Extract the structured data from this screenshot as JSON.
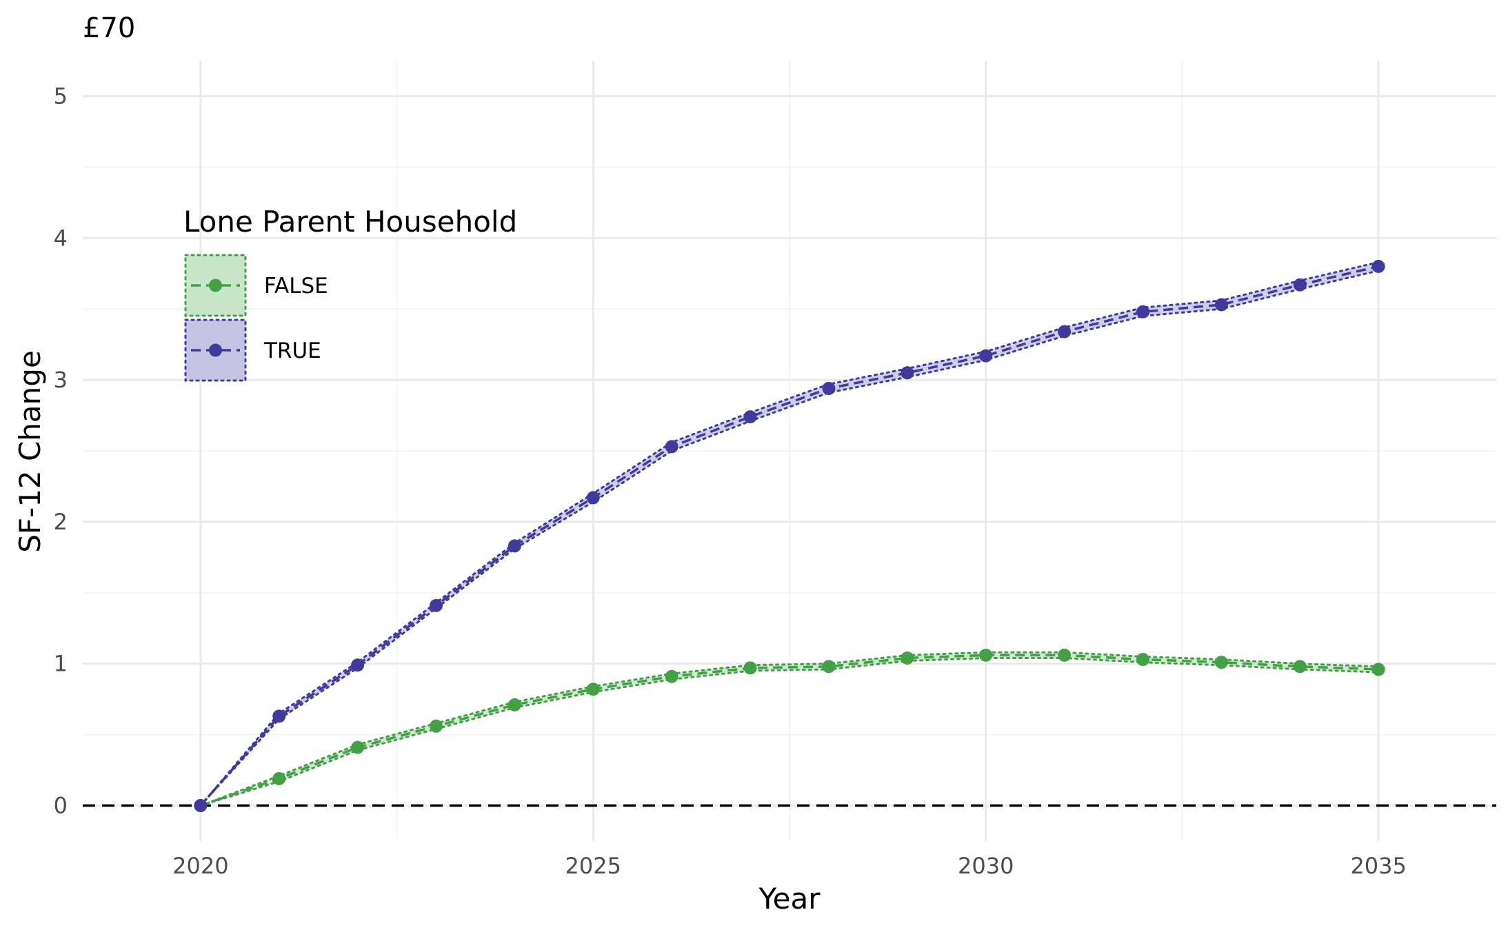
{
  "chart_data": {
    "type": "line",
    "title": "£70",
    "xlabel": "Year",
    "ylabel": "SF-12 Change",
    "x": [
      2020,
      2021,
      2022,
      2023,
      2024,
      2025,
      2026,
      2027,
      2028,
      2029,
      2030,
      2031,
      2032,
      2033,
      2034,
      2035
    ],
    "xlim": [
      2018.5,
      2036.5
    ],
    "ylim": [
      -0.25,
      5.25
    ],
    "x_ticks": [
      2020,
      2025,
      2030,
      2035
    ],
    "y_ticks": [
      0,
      1,
      2,
      3,
      4,
      5
    ],
    "grid": true,
    "reference_line": {
      "y": 0,
      "style": "dashed",
      "color": "#000000"
    },
    "legend": {
      "title": "Lone Parent Household",
      "placement": "upper-left-inside"
    },
    "series": [
      {
        "name": "FALSE",
        "color": "#43a047",
        "fill": "#c8e6c9",
        "values": [
          0.0,
          0.19,
          0.41,
          0.56,
          0.71,
          0.82,
          0.91,
          0.97,
          0.98,
          1.04,
          1.06,
          1.06,
          1.03,
          1.01,
          0.98,
          0.96
        ],
        "lower": [
          0.0,
          0.17,
          0.39,
          0.54,
          0.69,
          0.8,
          0.89,
          0.95,
          0.96,
          1.02,
          1.04,
          1.04,
          1.01,
          0.99,
          0.96,
          0.94
        ],
        "upper": [
          0.0,
          0.21,
          0.43,
          0.58,
          0.73,
          0.84,
          0.93,
          0.99,
          1.0,
          1.06,
          1.08,
          1.08,
          1.05,
          1.03,
          1.0,
          0.98
        ]
      },
      {
        "name": "TRUE",
        "color": "#3f3a9c",
        "fill": "#c5c5e3",
        "values": [
          0.0,
          0.63,
          0.99,
          1.41,
          1.83,
          2.17,
          2.53,
          2.74,
          2.94,
          3.05,
          3.17,
          3.34,
          3.48,
          3.53,
          3.67,
          3.8
        ],
        "lower": [
          0.0,
          0.61,
          0.97,
          1.39,
          1.81,
          2.14,
          2.5,
          2.71,
          2.91,
          3.02,
          3.14,
          3.31,
          3.45,
          3.5,
          3.64,
          3.77
        ],
        "upper": [
          0.0,
          0.65,
          1.01,
          1.43,
          1.85,
          2.2,
          2.56,
          2.77,
          2.97,
          3.08,
          3.2,
          3.37,
          3.51,
          3.56,
          3.7,
          3.83
        ]
      }
    ]
  }
}
